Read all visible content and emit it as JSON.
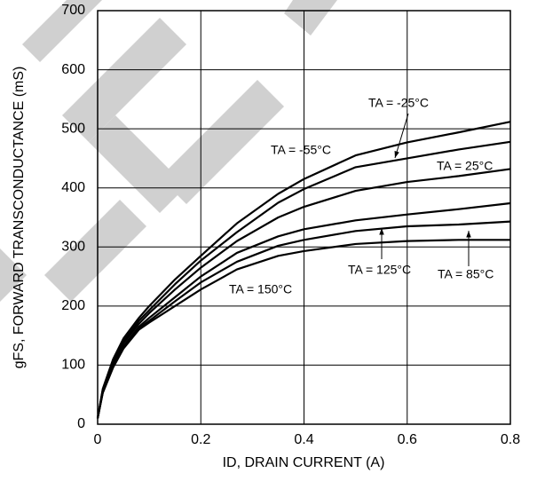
{
  "chart_data": {
    "type": "line",
    "xlabel": "ID, DRAIN CURRENT (A)",
    "ylabel": "gFS, FORWARD TRANSCONDUCTANCE (mS)",
    "x": [
      0,
      0.01,
      0.03,
      0.05,
      0.08,
      0.1,
      0.15,
      0.2,
      0.27,
      0.35,
      0.4,
      0.5,
      0.6,
      0.7,
      0.8
    ],
    "series": [
      {
        "name": "TA = -55°C",
        "color": "#000000",
        "values": [
          10,
          60,
          110,
          145,
          180,
          200,
          245,
          285,
          340,
          390,
          415,
          455,
          477,
          494,
          512
        ]
      },
      {
        "name": "TA = -25°C",
        "color": "#000000",
        "values": [
          10,
          58,
          107,
          140,
          175,
          193,
          237,
          277,
          325,
          375,
          398,
          435,
          450,
          465,
          478
        ]
      },
      {
        "name": "TA = 25°C",
        "color": "#000000",
        "values": [
          10,
          57,
          104,
          137,
          170,
          188,
          228,
          265,
          310,
          350,
          368,
          395,
          410,
          420,
          432
        ]
      },
      {
        "name": "TA = 85°C",
        "color": "#000000",
        "values": [
          10,
          55,
          100,
          132,
          165,
          180,
          215,
          250,
          290,
          318,
          330,
          345,
          355,
          364,
          374
        ]
      },
      {
        "name": "TA = 125°C",
        "color": "#000000",
        "values": [
          10,
          54,
          98,
          130,
          162,
          175,
          208,
          240,
          275,
          302,
          312,
          327,
          335,
          338,
          343
        ]
      },
      {
        "name": "TA = 150°C",
        "color": "#000000",
        "values": [
          10,
          53,
          96,
          128,
          160,
          172,
          200,
          228,
          262,
          285,
          293,
          305,
          310,
          312,
          312
        ]
      }
    ],
    "xlim": [
      0,
      0.8
    ],
    "xticks": [
      0,
      0.2,
      0.4,
      0.6,
      0.8
    ],
    "ylim": [
      0,
      700
    ],
    "yticks": [
      0,
      100,
      200,
      300,
      400,
      500,
      600,
      700
    ],
    "grid": true
  }
}
